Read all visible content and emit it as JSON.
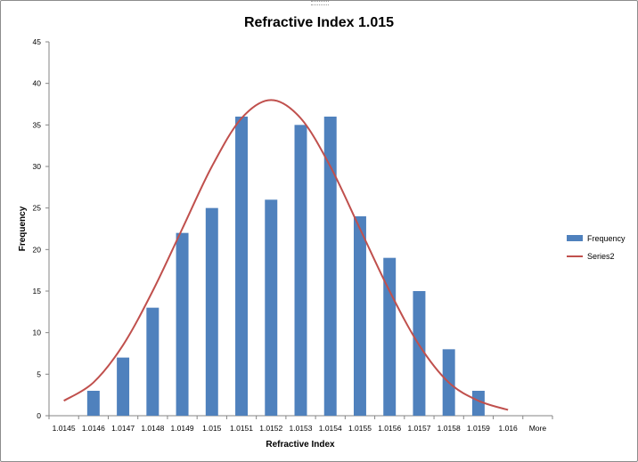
{
  "chart_data": {
    "type": "bar",
    "title": "Refractive Index 1.015",
    "xlabel": "Refractive Index",
    "ylabel": "Frequency",
    "categories": [
      "1.0145",
      "1.0146",
      "1.0147",
      "1.0148",
      "1.0149",
      "1.015",
      "1.0151",
      "1.0152",
      "1.0153",
      "1.0154",
      "1.0155",
      "1.0156",
      "1.0157",
      "1.0158",
      "1.0159",
      "1.016",
      "More"
    ],
    "ylim": [
      0,
      45
    ],
    "yticks": [
      "0",
      "5",
      "10",
      "15",
      "20",
      "25",
      "30",
      "35",
      "40",
      "45"
    ],
    "grid": false,
    "legend_position": "right",
    "series": [
      {
        "name": "Frequency",
        "type": "bar",
        "color": "#4F81BD",
        "values": [
          0,
          3,
          7,
          13,
          22,
          25,
          36,
          26,
          35,
          36,
          24,
          19,
          15,
          8,
          3,
          0,
          0
        ]
      },
      {
        "name": "Series2",
        "type": "line",
        "color": "#C0504D",
        "values": [
          1.8,
          4.0,
          8.5,
          15.0,
          22.5,
          30.0,
          35.8,
          38.0,
          35.8,
          30.0,
          22.5,
          15.0,
          8.5,
          4.0,
          1.8,
          0.7,
          null
        ]
      }
    ]
  }
}
